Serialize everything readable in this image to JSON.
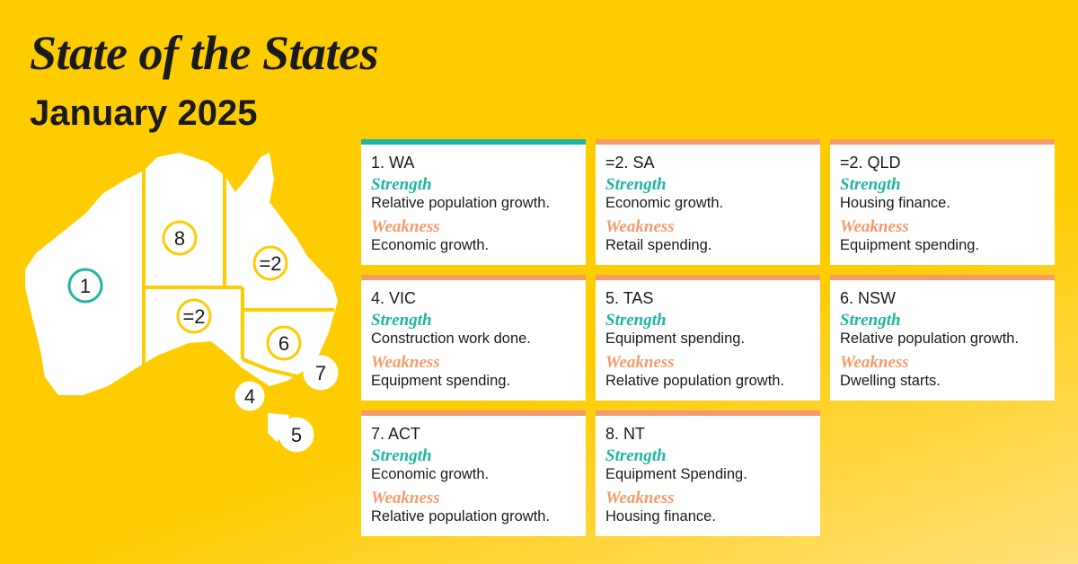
{
  "header": {
    "title": "State of the States",
    "subtitle": "January 2025"
  },
  "map_labels": [
    "1",
    "8",
    "=2",
    "=2",
    "6",
    "7",
    "4",
    "5"
  ],
  "cards": [
    {
      "title": "1. WA",
      "accent_color": "#1fb5a3",
      "strength_heading": "Strength",
      "strength": "Relative population growth.",
      "weakness_heading": "Weakness",
      "weakness": "Economic growth."
    },
    {
      "title": "=2. SA",
      "accent_color": "#f59a6a",
      "strength_heading": "Strength",
      "strength": "Economic growth.",
      "weakness_heading": "Weakness",
      "weakness": "Retail spending."
    },
    {
      "title": "=2. QLD",
      "accent_color": "#f59a6a",
      "strength_heading": "Strength",
      "strength": "Housing finance.",
      "weakness_heading": "Weakness",
      "weakness": "Equipment spending."
    },
    {
      "title": "4. VIC",
      "accent_color": "#f59a6a",
      "strength_heading": "Strength",
      "strength": "Construction work done.",
      "weakness_heading": "Weakness",
      "weakness": "Equipment spending."
    },
    {
      "title": "5. TAS",
      "accent_color": "#f59a6a",
      "strength_heading": "Strength",
      "strength": "Equipment spending.",
      "weakness_heading": "Weakness",
      "weakness": "Relative population growth."
    },
    {
      "title": "6. NSW",
      "accent_color": "#f59a6a",
      "strength_heading": "Strength",
      "strength": "Relative population growth.",
      "weakness_heading": "Weakness",
      "weakness": "Dwelling starts."
    },
    {
      "title": "7. ACT",
      "accent_color": "#f59a6a",
      "strength_heading": "Strength",
      "strength": "Economic growth.",
      "weakness_heading": "Weakness",
      "weakness": "Relative population growth."
    },
    {
      "title": "8. NT",
      "accent_color": "#f59a6a",
      "strength_heading": "Strength",
      "strength": "Equipment Spending.",
      "weakness_heading": "Weakness",
      "weakness": "Housing finance."
    }
  ]
}
